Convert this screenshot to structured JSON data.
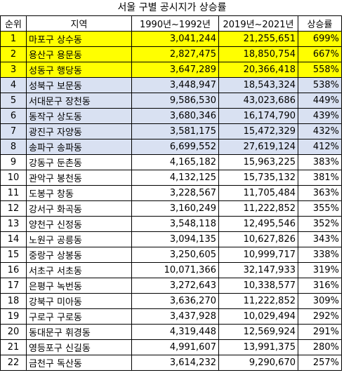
{
  "title": "서울 구별 공시지가 상승률",
  "headers": [
    "순위",
    "지역",
    "1990년~1992년",
    "2019년~2021년",
    "상승률"
  ],
  "colors": {
    "top3": "#ffff00",
    "top8": "#d9e1f2",
    "border": "#000000"
  },
  "rows": [
    {
      "rank": "1",
      "region": "마포구 상수동",
      "v1990": "3,041,244",
      "v2019": "21,255,651",
      "rate": "699%",
      "style": "yellow"
    },
    {
      "rank": "2",
      "region": "용산구 용문동",
      "v1990": "2,827,475",
      "v2019": "18,850,754",
      "rate": "667%",
      "style": "yellow"
    },
    {
      "rank": "3",
      "region": "성동구 행당동",
      "v1990": "3,647,289",
      "v2019": "20,366,418",
      "rate": "558%",
      "style": "yellow"
    },
    {
      "rank": "4",
      "region": "성북구 보문동",
      "v1990": "3,448,947",
      "v2019": "18,543,324",
      "rate": "538%",
      "style": "blue"
    },
    {
      "rank": "5",
      "region": "서대문구 장천동",
      "v1990": "9,586,530",
      "v2019": "43,023,686",
      "rate": "449%",
      "style": "blue"
    },
    {
      "rank": "6",
      "region": "동작구 상도동",
      "v1990": "3,680,346",
      "v2019": "16,174,790",
      "rate": "439%",
      "style": "blue"
    },
    {
      "rank": "7",
      "region": "광진구 자양동",
      "v1990": "3,581,175",
      "v2019": "15,472,329",
      "rate": "432%",
      "style": "blue"
    },
    {
      "rank": "8",
      "region": "송파구 송파동",
      "v1990": "6,699,552",
      "v2019": "27,619,124",
      "rate": "412%",
      "style": "blue"
    },
    {
      "rank": "9",
      "region": "강동구 둔촌동",
      "v1990": "4,165,182",
      "v2019": "15,963,225",
      "rate": "383%",
      "style": ""
    },
    {
      "rank": "10",
      "region": "관악구 봉천동",
      "v1990": "4,132,125",
      "v2019": "15,735,132",
      "rate": "381%",
      "style": ""
    },
    {
      "rank": "11",
      "region": "도봉구 창동",
      "v1990": "3,228,567",
      "v2019": "11,705,484",
      "rate": "363%",
      "style": ""
    },
    {
      "rank": "12",
      "region": "강서구 화곡동",
      "v1990": "3,160,249",
      "v2019": "11,222,852",
      "rate": "355%",
      "style": ""
    },
    {
      "rank": "13",
      "region": "양천구 신정동",
      "v1990": "3,548,118",
      "v2019": "12,495,546",
      "rate": "352%",
      "style": ""
    },
    {
      "rank": "14",
      "region": "노원구 공릉동",
      "v1990": "3,094,135",
      "v2019": "10,627,826",
      "rate": "343%",
      "style": ""
    },
    {
      "rank": "15",
      "region": "중랑구 상봉동",
      "v1990": "3,250,605",
      "v2019": "10,999,717",
      "rate": "338%",
      "style": ""
    },
    {
      "rank": "16",
      "region": "서초구 서초동",
      "v1990": "10,071,366",
      "v2019": "32,147,933",
      "rate": "319%",
      "style": ""
    },
    {
      "rank": "17",
      "region": "은평구 녹번동",
      "v1990": "3,272,643",
      "v2019": "10,338,577",
      "rate": "316%",
      "style": ""
    },
    {
      "rank": "18",
      "region": "강북구 미아동",
      "v1990": "3,636,270",
      "v2019": "11,222,852",
      "rate": "309%",
      "style": ""
    },
    {
      "rank": "19",
      "region": "구로구 구로동",
      "v1990": "3,437,928",
      "v2019": "10,029,494",
      "rate": "292%",
      "style": ""
    },
    {
      "rank": "20",
      "region": "동대문구 휘경동",
      "v1990": "4,319,448",
      "v2019": "12,569,924",
      "rate": "291%",
      "style": ""
    },
    {
      "rank": "21",
      "region": "영등포구 신길동",
      "v1990": "4,991,607",
      "v2019": "13,991,375",
      "rate": "280%",
      "style": ""
    },
    {
      "rank": "22",
      "region": "금천구 독산동",
      "v1990": "3,614,232",
      "v2019": "9,290,670",
      "rate": "257%",
      "style": ""
    }
  ]
}
